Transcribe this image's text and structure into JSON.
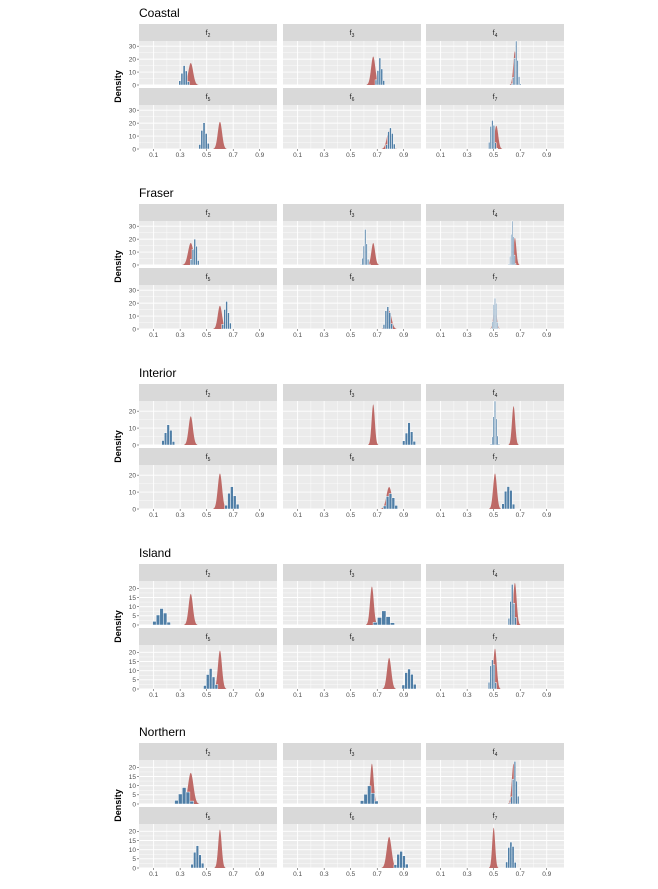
{
  "chart_data": {
    "type": "faceted-histogram-density",
    "ylabel": "Density",
    "facet_prefix": "f",
    "colors": {
      "panel_bg": "#ebebeb",
      "strip_bg": "#d9d9d9",
      "grid": "#ffffff",
      "histogram": "#4f7ea6",
      "histogram_edge": "#ffffff",
      "density": "#b5524f"
    },
    "x_ticks": [
      "0.1",
      "0.3",
      "0.5",
      "0.7",
      "0.9"
    ],
    "xlim": [
      0.02,
      1.0
    ],
    "regions": [
      {
        "name": "Coastal",
        "y_ticks": [
          0,
          10,
          20,
          30
        ],
        "ylim": [
          0,
          34
        ],
        "facets": [
          {
            "sub": "2",
            "density": {
              "center": 0.38,
              "sd": 0.018,
              "peak": 17
            },
            "hist": {
              "center": 0.33,
              "sd": 0.018,
              "peak": 15
            }
          },
          {
            "sub": "3",
            "density": {
              "center": 0.67,
              "sd": 0.016,
              "peak": 22
            },
            "hist": {
              "center": 0.72,
              "sd": 0.016,
              "peak": 19
            }
          },
          {
            "sub": "4",
            "density": {
              "center": 0.66,
              "sd": 0.012,
              "peak": 26
            },
            "hist": {
              "center": 0.67,
              "sd": 0.012,
              "peak": 32
            }
          },
          {
            "sub": "5",
            "density": {
              "center": 0.6,
              "sd": 0.016,
              "peak": 21
            },
            "hist": {
              "center": 0.48,
              "sd": 0.018,
              "peak": 20
            }
          },
          {
            "sub": "6",
            "density": {
              "center": 0.79,
              "sd": 0.018,
              "peak": 14
            },
            "hist": {
              "center": 0.8,
              "sd": 0.016,
              "peak": 18
            }
          },
          {
            "sub": "7",
            "density": {
              "center": 0.52,
              "sd": 0.014,
              "peak": 18
            },
            "hist": {
              "center": 0.49,
              "sd": 0.013,
              "peak": 25
            }
          }
        ]
      },
      {
        "name": "Fraser",
        "y_ticks": [
          0,
          10,
          20,
          30
        ],
        "ylim": [
          0,
          34
        ],
        "facets": [
          {
            "sub": "2",
            "density": {
              "center": 0.38,
              "sd": 0.02,
              "peak": 17
            },
            "hist": {
              "center": 0.41,
              "sd": 0.015,
              "peak": 20
            }
          },
          {
            "sub": "3",
            "density": {
              "center": 0.67,
              "sd": 0.014,
              "peak": 17
            },
            "hist": {
              "center": 0.61,
              "sd": 0.012,
              "peak": 25
            }
          },
          {
            "sub": "4",
            "density": {
              "center": 0.66,
              "sd": 0.011,
              "peak": 21
            },
            "hist": {
              "center": 0.64,
              "sd": 0.009,
              "peak": 37
            }
          },
          {
            "sub": "5",
            "density": {
              "center": 0.6,
              "sd": 0.016,
              "peak": 18
            },
            "hist": {
              "center": 0.65,
              "sd": 0.016,
              "peak": 21
            }
          },
          {
            "sub": "6",
            "density": {
              "center": 0.79,
              "sd": 0.018,
              "peak": 14
            },
            "hist": {
              "center": 0.78,
              "sd": 0.016,
              "peak": 19
            }
          },
          {
            "sub": "7",
            "density": {
              "center": 0.51,
              "sd": 0.011,
              "peak": 21
            },
            "hist": {
              "center": 0.51,
              "sd": 0.009,
              "peak": 27
            }
          }
        ]
      },
      {
        "name": "Interior",
        "y_ticks": [
          0,
          10,
          20
        ],
        "ylim": [
          0,
          26
        ],
        "facets": [
          {
            "sub": "2",
            "density": {
              "center": 0.38,
              "sd": 0.016,
              "peak": 17
            },
            "hist": {
              "center": 0.21,
              "sd": 0.022,
              "peak": 12
            }
          },
          {
            "sub": "3",
            "density": {
              "center": 0.67,
              "sd": 0.012,
              "peak": 24
            },
            "hist": {
              "center": 0.94,
              "sd": 0.022,
              "peak": 12
            }
          },
          {
            "sub": "4",
            "density": {
              "center": 0.65,
              "sd": 0.012,
              "peak": 23
            },
            "hist": {
              "center": 0.51,
              "sd": 0.011,
              "peak": 26
            }
          },
          {
            "sub": "5",
            "density": {
              "center": 0.6,
              "sd": 0.016,
              "peak": 21
            },
            "hist": {
              "center": 0.69,
              "sd": 0.024,
              "peak": 13
            }
          },
          {
            "sub": "6",
            "density": {
              "center": 0.79,
              "sd": 0.02,
              "peak": 13
            },
            "hist": {
              "center": 0.8,
              "sd": 0.024,
              "peak": 10
            }
          },
          {
            "sub": "7",
            "density": {
              "center": 0.51,
              "sd": 0.014,
              "peak": 21
            },
            "hist": {
              "center": 0.61,
              "sd": 0.022,
              "peak": 15
            }
          }
        ]
      },
      {
        "name": "Island",
        "y_ticks": [
          0,
          5,
          10,
          15,
          20
        ],
        "ylim": [
          0,
          24
        ],
        "facets": [
          {
            "sub": "2",
            "density": {
              "center": 0.38,
              "sd": 0.016,
              "peak": 17
            },
            "hist": {
              "center": 0.16,
              "sd": 0.03,
              "peak": 9
            }
          },
          {
            "sub": "3",
            "density": {
              "center": 0.66,
              "sd": 0.014,
              "peak": 21
            },
            "hist": {
              "center": 0.75,
              "sd": 0.036,
              "peak": 7
            }
          },
          {
            "sub": "4",
            "density": {
              "center": 0.66,
              "sd": 0.013,
              "peak": 23
            },
            "hist": {
              "center": 0.64,
              "sd": 0.014,
              "peak": 20
            }
          },
          {
            "sub": "5",
            "density": {
              "center": 0.6,
              "sd": 0.015,
              "peak": 21
            },
            "hist": {
              "center": 0.53,
              "sd": 0.024,
              "peak": 11
            }
          },
          {
            "sub": "6",
            "density": {
              "center": 0.79,
              "sd": 0.016,
              "peak": 17
            },
            "hist": {
              "center": 0.94,
              "sd": 0.024,
              "peak": 12
            }
          },
          {
            "sub": "7",
            "density": {
              "center": 0.51,
              "sd": 0.013,
              "peak": 22
            },
            "hist": {
              "center": 0.49,
              "sd": 0.014,
              "peak": 18
            }
          }
        ]
      },
      {
        "name": "Northern",
        "y_ticks": [
          0,
          5,
          10,
          15,
          20
        ],
        "ylim": [
          0,
          24
        ],
        "facets": [
          {
            "sub": "2",
            "density": {
              "center": 0.38,
              "sd": 0.02,
              "peak": 17
            },
            "hist": {
              "center": 0.33,
              "sd": 0.032,
              "peak": 9
            }
          },
          {
            "sub": "3",
            "density": {
              "center": 0.66,
              "sd": 0.013,
              "peak": 22
            },
            "hist": {
              "center": 0.64,
              "sd": 0.03,
              "peak": 9
            }
          },
          {
            "sub": "4",
            "density": {
              "center": 0.65,
              "sd": 0.013,
              "peak": 22
            },
            "hist": {
              "center": 0.66,
              "sd": 0.014,
              "peak": 21
            }
          },
          {
            "sub": "5",
            "density": {
              "center": 0.6,
              "sd": 0.013,
              "peak": 21
            },
            "hist": {
              "center": 0.43,
              "sd": 0.022,
              "peak": 12
            }
          },
          {
            "sub": "6",
            "density": {
              "center": 0.79,
              "sd": 0.018,
              "peak": 17
            },
            "hist": {
              "center": 0.88,
              "sd": 0.024,
              "peak": 10
            }
          },
          {
            "sub": "7",
            "density": {
              "center": 0.5,
              "sd": 0.011,
              "peak": 22
            },
            "hist": {
              "center": 0.63,
              "sd": 0.018,
              "peak": 16
            }
          }
        ]
      }
    ]
  }
}
